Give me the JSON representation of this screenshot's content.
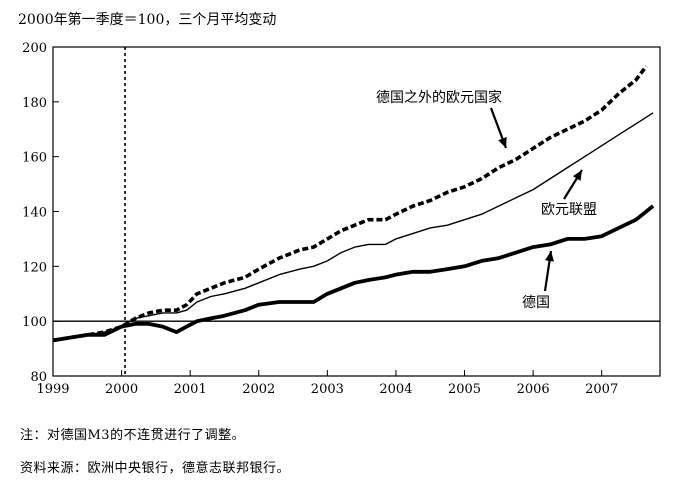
{
  "chart_data": {
    "type": "line",
    "title": "2000年第一季度＝100，三个月平均变动",
    "xlabel": "",
    "ylabel": "",
    "x_ticks": [
      "1999",
      "2000",
      "2001",
      "2002",
      "2003",
      "2004",
      "2005",
      "2006",
      "2007"
    ],
    "y_ticks": [
      "80",
      "100",
      "120",
      "140",
      "160",
      "180",
      "200"
    ],
    "xlim": [
      1999.0,
      2007.85
    ],
    "ylim": [
      80,
      200
    ],
    "reference_line_y": 100,
    "reference_line_x": 2000.05,
    "series": [
      {
        "name": "德国之外的欧元国家",
        "style": "dashed-thick",
        "x": [
          1999.0,
          1999.25,
          1999.5,
          1999.75,
          2000.0,
          2000.2,
          2000.4,
          2000.6,
          2000.8,
          2000.95,
          2001.1,
          2001.3,
          2001.5,
          2001.8,
          2002.0,
          2002.3,
          2002.6,
          2002.8,
          2003.0,
          2003.2,
          2003.4,
          2003.6,
          2003.85,
          2004.0,
          2004.25,
          2004.5,
          2004.75,
          2005.0,
          2005.25,
          2005.5,
          2005.75,
          2006.0,
          2006.25,
          2006.5,
          2006.75,
          2007.0,
          2007.25,
          2007.5,
          2007.65
        ],
        "y": [
          93,
          94,
          95,
          96,
          98,
          101,
          103,
          104,
          104,
          106,
          110,
          112,
          114,
          116,
          119,
          123,
          126,
          127,
          130,
          133,
          135,
          137,
          137,
          139,
          142,
          144,
          147,
          149,
          152,
          156,
          159,
          163,
          167,
          170,
          173,
          177,
          183,
          188,
          193
        ]
      },
      {
        "name": "欧元联盟",
        "style": "solid-thin",
        "x": [
          1999.0,
          1999.25,
          1999.5,
          1999.75,
          2000.0,
          2000.2,
          2000.4,
          2000.6,
          2000.8,
          2000.95,
          2001.1,
          2001.3,
          2001.5,
          2001.8,
          2002.0,
          2002.3,
          2002.6,
          2002.8,
          2003.0,
          2003.2,
          2003.4,
          2003.6,
          2003.85,
          2004.0,
          2004.25,
          2004.5,
          2004.75,
          2005.0,
          2005.25,
          2005.5,
          2005.75,
          2006.0,
          2006.25,
          2006.5,
          2006.75,
          2007.0,
          2007.25,
          2007.5,
          2007.75
        ],
        "y": [
          93,
          94,
          95,
          96,
          98,
          101,
          102,
          103,
          103,
          104,
          107,
          109,
          110,
          112,
          114,
          117,
          119,
          120,
          122,
          125,
          127,
          128,
          128,
          130,
          132,
          134,
          135,
          137,
          139,
          142,
          145,
          148,
          152,
          156,
          160,
          164,
          168,
          172,
          176
        ]
      },
      {
        "name": "德国",
        "style": "solid-thick",
        "x": [
          1999.0,
          1999.25,
          1999.5,
          1999.75,
          2000.0,
          2000.2,
          2000.4,
          2000.6,
          2000.8,
          2000.95,
          2001.1,
          2001.3,
          2001.5,
          2001.8,
          2002.0,
          2002.3,
          2002.6,
          2002.8,
          2003.0,
          2003.2,
          2003.4,
          2003.6,
          2003.85,
          2004.0,
          2004.25,
          2004.5,
          2004.75,
          2005.0,
          2005.25,
          2005.5,
          2005.75,
          2006.0,
          2006.25,
          2006.5,
          2006.75,
          2007.0,
          2007.25,
          2007.5,
          2007.75
        ],
        "y": [
          93,
          94,
          95,
          95,
          98,
          99,
          99,
          98,
          96,
          98,
          100,
          101,
          102,
          104,
          106,
          107,
          107,
          107,
          110,
          112,
          114,
          115,
          116,
          117,
          118,
          118,
          119,
          120,
          122,
          123,
          125,
          127,
          128,
          130,
          130,
          131,
          134,
          137,
          142
        ]
      }
    ],
    "annotations": [
      {
        "text": "德国之外的欧元国家",
        "series": "德国之外的欧元国家"
      },
      {
        "text": "欧元联盟",
        "series": "欧元联盟"
      },
      {
        "text": "德国",
        "series": "德国"
      }
    ]
  },
  "notes": {
    "note": "注：对德国M3的不连贯进行了调整。",
    "source": "资料来源：欧洲中央银行，德意志联邦银行。"
  }
}
